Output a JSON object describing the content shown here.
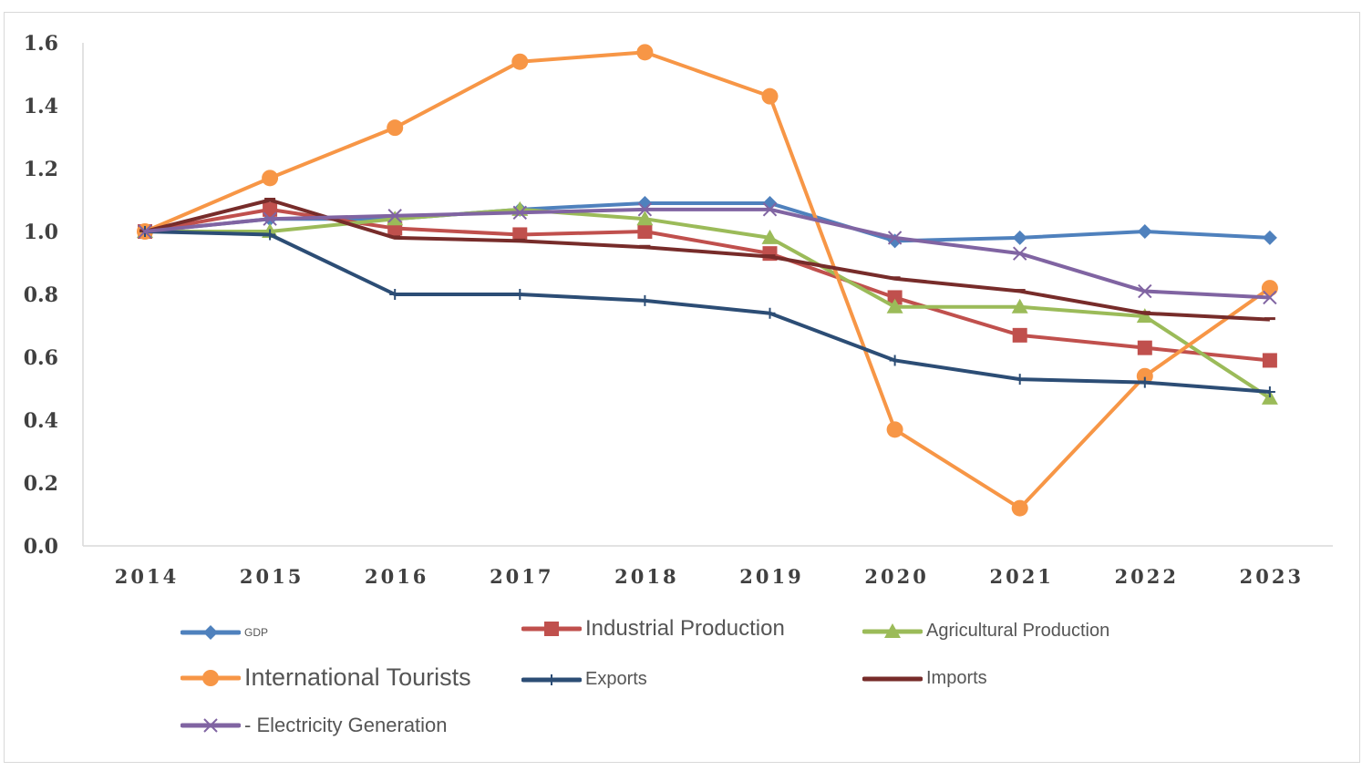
{
  "chart_data": {
    "type": "line",
    "title": "",
    "xlabel": "",
    "ylabel": "",
    "categories": [
      "2014",
      "2015",
      "2016",
      "2017",
      "2018",
      "2019",
      "2020",
      "2021",
      "2022",
      "2023"
    ],
    "ylim": [
      0,
      1.6
    ],
    "yticks": [
      "0.0",
      "0.2",
      "0.4",
      "0.6",
      "0.8",
      "1.0",
      "1.2",
      "1.4",
      "1.6"
    ],
    "grid": false,
    "legend_position": "bottom",
    "series": [
      {
        "name": "GDP",
        "color": "#4f81bd",
        "marker": "diamond",
        "values": [
          1.0,
          1.04,
          1.04,
          1.07,
          1.09,
          1.09,
          0.97,
          0.98,
          1.0,
          0.98
        ]
      },
      {
        "name": "Industrial Production",
        "color": "#c0504d",
        "marker": "square",
        "values": [
          1.0,
          1.07,
          1.01,
          0.99,
          1.0,
          0.93,
          0.79,
          0.67,
          0.63,
          0.59
        ]
      },
      {
        "name": "Agricultural Production",
        "color": "#9bbb59",
        "marker": "triangle",
        "values": [
          1.0,
          1.0,
          1.04,
          1.07,
          1.04,
          0.98,
          0.76,
          0.76,
          0.73,
          0.47
        ]
      },
      {
        "name": "International Tourists",
        "color": "#f79646",
        "marker": "circle",
        "values": [
          1.0,
          1.17,
          1.33,
          1.54,
          1.57,
          1.43,
          0.37,
          0.12,
          0.54,
          0.82
        ]
      },
      {
        "name": "Exports",
        "color": "#2c4d75",
        "marker": "plus",
        "values": [
          1.0,
          0.99,
          0.8,
          0.8,
          0.78,
          0.74,
          0.59,
          0.53,
          0.52,
          0.49
        ]
      },
      {
        "name": "Imports",
        "color": "#772c2a",
        "marker": "dash",
        "values": [
          1.0,
          1.1,
          0.98,
          0.97,
          0.95,
          0.92,
          0.85,
          0.81,
          0.74,
          0.72
        ]
      },
      {
        "name": "- Electricity Generation",
        "color": "#8064a2",
        "marker": "x",
        "values": [
          1.0,
          1.04,
          1.05,
          1.06,
          1.07,
          1.07,
          0.98,
          0.93,
          0.81,
          0.79
        ]
      }
    ]
  }
}
